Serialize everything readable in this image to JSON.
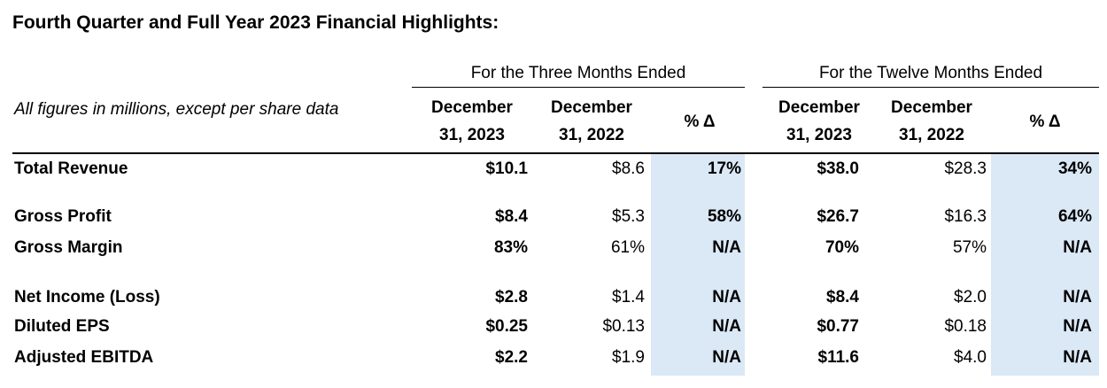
{
  "title": "Fourth Quarter and Full Year 2023 Financial Highlights:",
  "group_headers": [
    "For the Three Months Ended",
    "For the Twelve Months Ended"
  ],
  "context_note": "All figures in millions, except per share data",
  "column_headers": {
    "three_cur": [
      "December",
      "31, 2023"
    ],
    "three_prev": [
      "December",
      "31, 2022"
    ],
    "three_pct": "% Δ",
    "twelve_cur": [
      "December",
      "31, 2023"
    ],
    "twelve_prev": [
      "December",
      "31, 2022"
    ],
    "twelve_pct": "% Δ"
  },
  "shade_color": "#dbe8f5",
  "rows": [
    {
      "label": "Total Revenue",
      "values": [
        "$10.1",
        "$8.6",
        "17%",
        "$38.0",
        "$28.3",
        "34%"
      ]
    },
    {
      "label": "Gross Profit",
      "values": [
        "$8.4",
        "$5.3",
        "58%",
        "$26.7",
        "$16.3",
        "64%"
      ]
    },
    {
      "label": "Gross Margin",
      "values": [
        "83%",
        "61%",
        "N/A",
        "70%",
        "57%",
        "N/A"
      ]
    },
    {
      "label": "Net Income (Loss)",
      "values": [
        "$2.8",
        "$1.4",
        "N/A",
        "$8.4",
        "$2.0",
        "N/A"
      ]
    },
    {
      "label": "Diluted EPS",
      "values": [
        "$0.25",
        "$0.13",
        "N/A",
        "$0.77",
        "$0.18",
        "N/A"
      ]
    },
    {
      "label": "Adjusted EBITDA",
      "values": [
        "$2.2",
        "$1.9",
        "N/A",
        "$11.6",
        "$4.0",
        "N/A"
      ]
    }
  ]
}
